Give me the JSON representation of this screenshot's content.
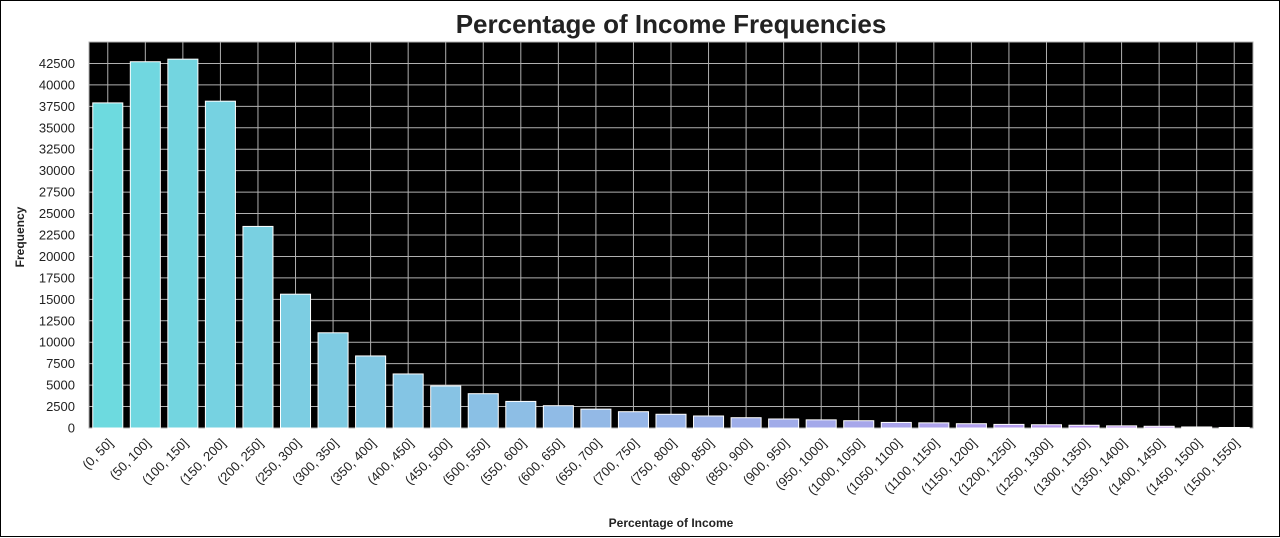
{
  "chart_data": {
    "type": "bar",
    "title": "Percentage of Income Frequencies",
    "xlabel": "Percentage of Income",
    "ylabel": "Frequency",
    "categories": [
      "(0, 50]",
      "(50, 100]",
      "(100, 150]",
      "(150, 200]",
      "(200, 250]",
      "(250, 300]",
      "(300, 350]",
      "(350, 400]",
      "(400, 450]",
      "(450, 500]",
      "(500, 550]",
      "(550, 600]",
      "(600, 650]",
      "(650, 700]",
      "(700, 750]",
      "(750, 800]",
      "(800, 850]",
      "(850, 900]",
      "(900, 950]",
      "(950, 1000]",
      "(1000, 1050]",
      "(1050, 1100]",
      "(1100, 1150]",
      "(1150, 1200]",
      "(1200, 1250]",
      "(1250, 1300]",
      "(1300, 1350]",
      "(1350, 1400]",
      "(1400, 1450]",
      "(1450, 1500]",
      "(1500, 1550]"
    ],
    "values": [
      37900,
      42700,
      43000,
      38100,
      23500,
      15600,
      11100,
      8400,
      6300,
      4900,
      4000,
      3100,
      2600,
      2200,
      1900,
      1600,
      1400,
      1200,
      1050,
      950,
      850,
      650,
      600,
      500,
      420,
      380,
      320,
      250,
      200,
      120,
      60
    ],
    "ylim": [
      0,
      45000
    ],
    "yticks": [
      0,
      2500,
      5000,
      7500,
      10000,
      12500,
      15000,
      17500,
      20000,
      22500,
      25000,
      27500,
      30000,
      32500,
      35000,
      37500,
      40000,
      42500
    ],
    "grid": true,
    "plot_background": "#000000",
    "grid_color": "#b0b0b0",
    "bar_color_start": "#6ddadf",
    "bar_color_end": "#c48df0",
    "bar_edge_color": "#ffffff"
  }
}
